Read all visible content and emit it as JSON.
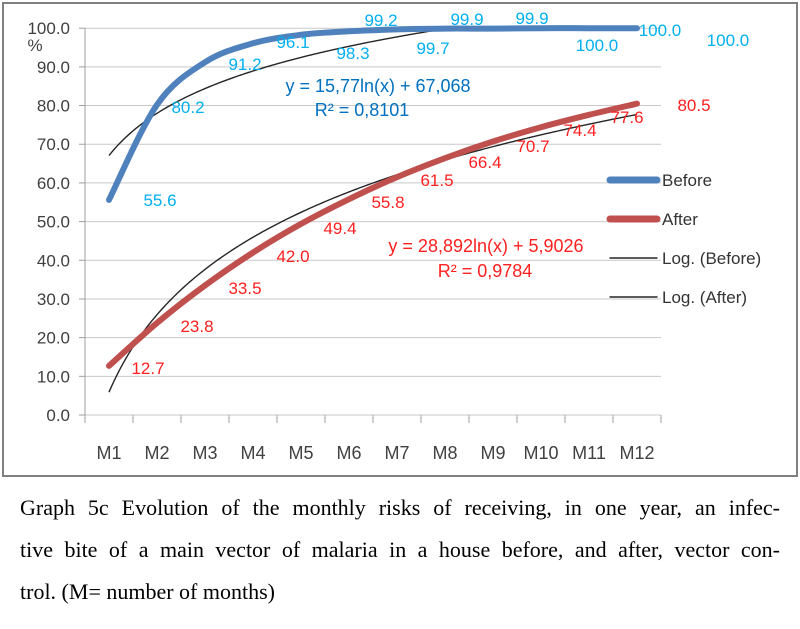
{
  "chart_data": {
    "type": "line",
    "title": "",
    "xlabel": "",
    "ylabel": "%",
    "ylim": [
      0,
      100
    ],
    "ytick_step": 10,
    "grid": true,
    "legend_position": "right",
    "yticks": [
      "100.0",
      "90.0",
      "80.0",
      "70.0",
      "60.0",
      "50.0",
      "40.0",
      "30.0",
      "20.0",
      "10.0",
      "0.0"
    ],
    "categories": [
      "M1",
      "M2",
      "M3",
      "M4",
      "M5",
      "M6",
      "M7",
      "M8",
      "M9",
      "M10",
      "M11",
      "M12"
    ],
    "legend": [
      "Before",
      "After",
      "Log. (Before)",
      "Log. (After)"
    ],
    "series": [
      {
        "name": "Before",
        "color": "#4F81BD",
        "label_color": "#00B0F0",
        "values": [
          55.6,
          80.2,
          91.2,
          96.1,
          98.3,
          99.2,
          99.7,
          99.9,
          99.9,
          100.0,
          100.0,
          100.0
        ],
        "labels": [
          "55.6",
          "80.2",
          "91.2",
          "96.1",
          "98.3",
          "99.2",
          "99.7",
          "99.9",
          "99.9",
          "100.0",
          "100.0",
          "100.0"
        ],
        "trendline": {
          "name": "Log. (Before)",
          "equation": "y = 15,77ln(x) + 67,068",
          "r2_label": "R² = 0,8101",
          "a": 15.77,
          "b": 67.068,
          "equation_color": "#0070C0"
        }
      },
      {
        "name": "After",
        "color": "#C0504D",
        "label_color": "#FF2020",
        "values": [
          12.7,
          23.8,
          33.5,
          42.0,
          49.4,
          55.8,
          61.5,
          66.4,
          70.7,
          74.4,
          77.6,
          80.5
        ],
        "labels": [
          "12.7",
          "23.8",
          "33.5",
          "42.0",
          "49.4",
          "55.8",
          "61.5",
          "66.4",
          "70.7",
          "74.4",
          "77.6",
          "80.5"
        ],
        "trendline": {
          "name": "Log. (After)",
          "equation": "y = 28,892ln(x) + 5,9026",
          "r2_label": "R² = 0,9784",
          "a": 28.892,
          "b": 5.9026,
          "equation_color": "#FF2020"
        }
      }
    ],
    "colors": {
      "gridline": "#C9C9C9",
      "axis": "#9F9F9F",
      "tick_text": "#404040",
      "trendline": "#262626",
      "frame_border": "#808080"
    }
  },
  "caption": {
    "line1": "Graph 5c Evolution of the monthly risks of receiving, in one year, an infec-",
    "line2": "tive bite of a main vector of malaria in a house before, and after, vector con-",
    "line3": "trol. (M= number of months)"
  }
}
